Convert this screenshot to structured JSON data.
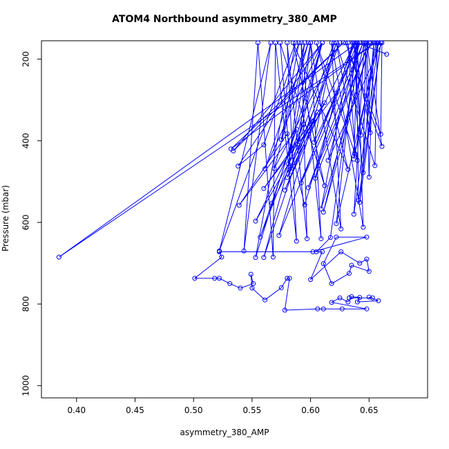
{
  "chart_data": {
    "type": "scatter",
    "title": "ATOM4 Northbound asymmetry_380_AMP",
    "xlabel": "asymmetry_380_AMP",
    "ylabel": "Pressure (mbar)",
    "xlim": [
      0.37,
      0.7
    ],
    "ylim": [
      1030,
      155
    ],
    "y_axis_reversed": true,
    "x_ticks": [
      0.4,
      0.45,
      0.5,
      0.55,
      0.6,
      0.65
    ],
    "x_tick_labels": [
      "0.40",
      "0.45",
      "0.50",
      "0.55",
      "0.60",
      "0.65"
    ],
    "y_ticks": [
      200,
      400,
      600,
      800,
      1000
    ],
    "y_tick_labels": [
      "200",
      "400",
      "600",
      "800",
      "1000"
    ],
    "grid": false,
    "legend": "none",
    "color": "#0000ff",
    "markers": "open-circles-connected-by-lines",
    "series": [
      {
        "points": [
          [
            0.665,
            188
          ],
          [
            0.64,
            160
          ],
          [
            0.385,
            685
          ],
          [
            0.655,
            160
          ],
          [
            0.532,
            420
          ],
          [
            0.628,
            160
          ],
          [
            0.534,
            425
          ],
          [
            0.61,
            160
          ],
          [
            0.538,
            462
          ],
          [
            0.56,
            410
          ],
          [
            0.59,
            160
          ],
          [
            0.575,
            397
          ],
          [
            0.595,
            160
          ],
          [
            0.581,
            457
          ],
          [
            0.6,
            160
          ],
          [
            0.59,
            402
          ],
          [
            0.62,
            160
          ],
          [
            0.603,
            404
          ],
          [
            0.642,
            160
          ],
          [
            0.615,
            448
          ],
          [
            0.661,
            160
          ],
          [
            0.66,
            384
          ],
          [
            0.63,
            160
          ],
          [
            0.661,
            414
          ],
          [
            0.648,
            160
          ],
          [
            0.651,
            380
          ],
          [
            0.637,
            160
          ],
          [
            0.643,
            386
          ],
          [
            0.657,
            160
          ],
          [
            0.655,
            461
          ],
          [
            0.622,
            160
          ],
          [
            0.64,
            448
          ],
          [
            0.605,
            160
          ],
          [
            0.632,
            470
          ],
          [
            0.585,
            160
          ],
          [
            0.612,
            510
          ],
          [
            0.574,
            160
          ],
          [
            0.583,
            475
          ],
          [
            0.61,
            160
          ],
          [
            0.561,
            469
          ],
          [
            0.598,
            160
          ],
          [
            0.569,
            468
          ],
          [
            0.625,
            160
          ],
          [
            0.58,
            490
          ],
          [
            0.638,
            160
          ],
          [
            0.592,
            503
          ],
          [
            0.645,
            160
          ],
          [
            0.598,
            515
          ],
          [
            0.65,
            160
          ],
          [
            0.604,
            492
          ],
          [
            0.622,
            283
          ],
          [
            0.56,
            517
          ],
          [
            0.612,
            307
          ],
          [
            0.578,
            521
          ],
          [
            0.606,
            330
          ],
          [
            0.567,
            553
          ],
          [
            0.602,
            352
          ],
          [
            0.553,
            597
          ],
          [
            0.594,
            360
          ],
          [
            0.557,
            636
          ],
          [
            0.588,
            372
          ],
          [
            0.539,
            558
          ],
          [
            0.58,
            383
          ],
          [
            0.595,
            557
          ],
          [
            0.636,
            160
          ],
          [
            0.609,
            567
          ],
          [
            0.651,
            160
          ],
          [
            0.611,
            575
          ],
          [
            0.646,
            160
          ],
          [
            0.637,
            580
          ],
          [
            0.658,
            160
          ],
          [
            0.622,
            603
          ],
          [
            0.639,
            160
          ],
          [
            0.641,
            546
          ],
          [
            0.66,
            160
          ],
          [
            0.642,
            551
          ],
          [
            0.654,
            160
          ],
          [
            0.65,
            489
          ],
          [
            0.647,
            160
          ],
          [
            0.645,
            478
          ],
          [
            0.632,
            160
          ],
          [
            0.638,
            432
          ],
          [
            0.656,
            160
          ],
          [
            0.637,
            445
          ],
          [
            0.64,
            160
          ],
          [
            0.645,
            612
          ],
          [
            0.618,
            160
          ],
          [
            0.626,
            616
          ],
          [
            0.6,
            160
          ],
          [
            0.609,
            640
          ],
          [
            0.592,
            160
          ],
          [
            0.597,
            640
          ],
          [
            0.58,
            160
          ],
          [
            0.588,
            646
          ],
          [
            0.57,
            160
          ],
          [
            0.568,
            685
          ],
          [
            0.555,
            160
          ],
          [
            0.543,
            670
          ],
          [
            0.566,
            160
          ],
          [
            0.522,
            670
          ],
          [
            0.587,
            160
          ],
          [
            0.553,
            686
          ],
          [
            0.61,
            160
          ],
          [
            0.56,
            686
          ],
          [
            0.622,
            160
          ],
          [
            0.573,
            632
          ],
          [
            0.64,
            160
          ],
          [
            0.617,
            637
          ],
          [
            0.605,
            672
          ],
          [
            0.61,
            672
          ],
          [
            0.6,
            740
          ],
          [
            0.626,
            672
          ],
          [
            0.642,
            700
          ],
          [
            0.648,
            690
          ],
          [
            0.65,
            720
          ],
          [
            0.635,
            705
          ],
          [
            0.633,
            725
          ],
          [
            0.618,
            750
          ],
          [
            0.611,
            701
          ],
          [
            0.622,
            636
          ],
          [
            0.648,
            636
          ],
          [
            0.602,
            672
          ],
          [
            0.522,
            672
          ],
          [
            0.524,
            685
          ],
          [
            0.501,
            737
          ],
          [
            0.518,
            737
          ],
          [
            0.522,
            737
          ],
          [
            0.531,
            750
          ],
          [
            0.54,
            761
          ],
          [
            0.551,
            750
          ],
          [
            0.549,
            727
          ],
          [
            0.55,
            761
          ],
          [
            0.561,
            790
          ],
          [
            0.575,
            760
          ],
          [
            0.58,
            737
          ],
          [
            0.582,
            737
          ],
          [
            0.578,
            815
          ],
          [
            0.606,
            812
          ],
          [
            0.611,
            812
          ],
          [
            0.627,
            812
          ],
          [
            0.648,
            812
          ],
          [
            0.618,
            796
          ],
          [
            0.625,
            785
          ],
          [
            0.632,
            795
          ],
          [
            0.635,
            782
          ],
          [
            0.642,
            784
          ],
          [
            0.64,
            795
          ],
          [
            0.658,
            792
          ],
          [
            0.65,
            783
          ],
          [
            0.653,
            785
          ],
          [
            0.633,
            785
          ]
        ]
      }
    ]
  }
}
